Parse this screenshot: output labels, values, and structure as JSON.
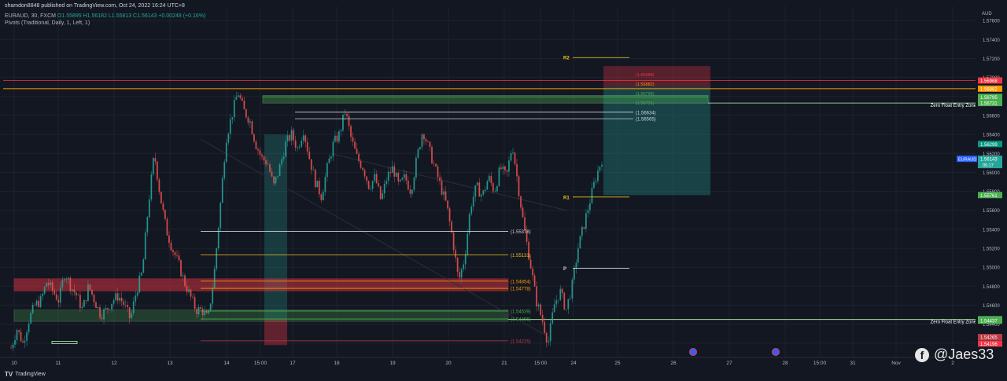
{
  "header": {
    "published": "shamdon8848 published on TradingView.com, Oct 24, 2022 16:24 UTC+8",
    "symbol_line": "EURAUD, 30, FXCM",
    "ohlc": "O1.55895 H1.56182 L1.55813 C1.56143 +0.00248 (+0.16%)",
    "indicator_line": "Pivots (Traditional, Daily, 1, Left, 1)"
  },
  "footer": {
    "brand": "TradingView",
    "watermark": "@Jaes33"
  },
  "chart_data": {
    "type": "candlestick",
    "currency": "AUD",
    "ylim": [
      1.5405,
      1.5775
    ],
    "y_ticks": [
      1.576,
      1.574,
      1.572,
      1.57,
      1.568,
      1.566,
      1.564,
      1.562,
      1.56,
      1.558,
      1.556,
      1.554,
      1.552,
      1.55,
      1.548,
      1.546,
      1.544,
      1.542
    ],
    "x_ticks": [
      "10",
      "11",
      "12",
      "13",
      "14",
      "15:00",
      "17",
      "18",
      "19",
      "20",
      "21",
      "15:00",
      "24",
      "25",
      "26",
      "27",
      "28",
      "15:00",
      "31",
      "Nov",
      "2"
    ],
    "close_path": [
      1.5415,
      1.5435,
      1.542,
      1.5445,
      1.546,
      1.5465,
      1.5485,
      1.5475,
      1.5465,
      1.5495,
      1.548,
      1.547,
      1.5455,
      1.548,
      1.5465,
      1.545,
      1.5455,
      1.5465,
      1.547,
      1.546,
      1.5445,
      1.5475,
      1.5495,
      1.5565,
      1.562,
      1.5575,
      1.554,
      1.552,
      1.5505,
      1.5485,
      1.547,
      1.5455,
      1.5455,
      1.5445,
      1.549,
      1.556,
      1.5635,
      1.566,
      1.5685,
      1.5665,
      1.5655,
      1.563,
      1.5615,
      1.561,
      1.5585,
      1.5605,
      1.563,
      1.564,
      1.5625,
      1.5645,
      1.5615,
      1.559,
      1.5575,
      1.5605,
      1.563,
      1.564,
      1.5665,
      1.5635,
      1.5615,
      1.5605,
      1.5585,
      1.5595,
      1.557,
      1.5595,
      1.5605,
      1.5585,
      1.5595,
      1.558,
      1.5615,
      1.5645,
      1.5625,
      1.5605,
      1.5585,
      1.5565,
      1.553,
      1.5485,
      1.551,
      1.5565,
      1.5585,
      1.5575,
      1.5595,
      1.558,
      1.5605,
      1.5595,
      1.563,
      1.5585,
      1.554,
      1.5505,
      1.5465,
      1.5445,
      1.542,
      1.546,
      1.5475,
      1.5455,
      1.548,
      1.552,
      1.5545,
      1.557,
      1.5595,
      1.5614
    ],
    "levels": [
      {
        "label": "1.55378",
        "value": 1.55378,
        "color": "#d1d4dc"
      },
      {
        "label": "1.55131",
        "value": 1.55131,
        "color": "#f0c419"
      },
      {
        "label": "1.54854",
        "value": 1.54854,
        "color": "#ff9800"
      },
      {
        "label": "1.54778",
        "value": 1.54778,
        "color": "#ff9800"
      },
      {
        "label": "1.54539",
        "value": 1.54539,
        "color": "#4caf50"
      },
      {
        "label": "1.54455",
        "value": 1.54455,
        "color": "#4caf50"
      },
      {
        "label": "1.54225",
        "value": 1.54225,
        "color": "#b83b45"
      },
      {
        "label": "1.56634",
        "value": 1.56634,
        "color": "#d1d4dc"
      },
      {
        "label": "1.56565",
        "value": 1.56565,
        "color": "#d1d4dc"
      }
    ],
    "pivots": [
      {
        "label": "R2",
        "value": 1.5721,
        "color": "#f0c419"
      },
      {
        "label": "R1",
        "value": 1.5574,
        "color": "#f0c419"
      },
      {
        "label": "P",
        "value": 1.5499,
        "color": "#d1d4dc"
      }
    ],
    "zones": [
      {
        "label": "Zero Float Entry Zone",
        "value": 1.56731
      },
      {
        "label": "Zero Float Entry Zone",
        "value": 1.5445
      }
    ],
    "price_labels": [
      {
        "text": "1.56968",
        "value": 1.56968,
        "bg": "#f23645"
      },
      {
        "text": "1.56882",
        "value": 1.56882,
        "bg": "#ff9800"
      },
      {
        "text": "1.56795",
        "value": 1.56795,
        "bg": "#4caf50"
      },
      {
        "text": "1.56731",
        "value": 1.56731,
        "bg": "#4caf50"
      },
      {
        "text": "1.56299",
        "value": 1.56299,
        "bg": "#089981"
      },
      {
        "text": "1.55761",
        "value": 1.55761,
        "bg": "#4caf50"
      },
      {
        "text": "1.54453",
        "value": 1.54453,
        "bg": "#4caf50"
      },
      {
        "text": "1.54437",
        "value": 1.54437,
        "bg": "#4caf50"
      },
      {
        "text": "1.54265",
        "value": 1.54265,
        "bg": "#b83b45"
      },
      {
        "text": "1.54196",
        "value": 1.54196,
        "bg": "#f23645"
      }
    ],
    "current": {
      "symbol": "EURAUD",
      "price": "1.56143",
      "countdown": "05:17",
      "value": 1.56143
    },
    "mini_labels": [
      "1.56968",
      "1.56882",
      "1.56795",
      "1.56731"
    ]
  }
}
